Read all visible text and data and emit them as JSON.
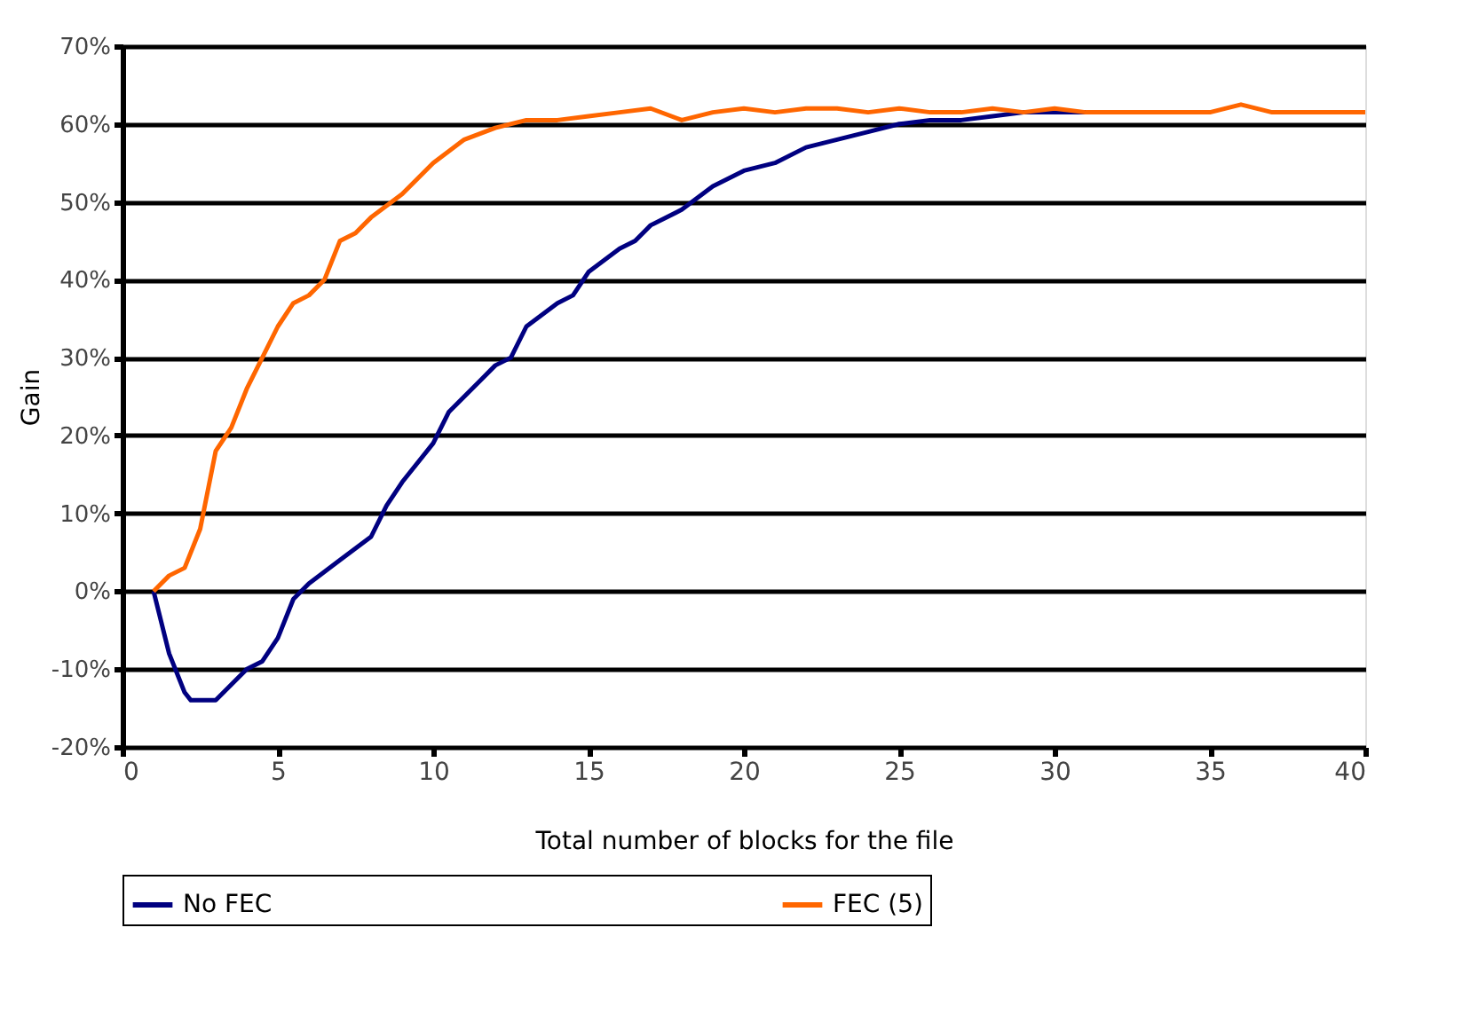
{
  "chart_data": {
    "type": "line",
    "xlabel": "Total number of blocks for the file",
    "ylabel": "Gain",
    "xlim": [
      0,
      40
    ],
    "xticks": [
      0,
      5,
      10,
      15,
      20,
      25,
      30,
      35,
      40
    ],
    "ylim": [
      -20,
      70
    ],
    "yticks": [
      {
        "value": -20,
        "label": "-20%"
      },
      {
        "value": -10,
        "label": "-10%"
      },
      {
        "value": 0,
        "label": "0%"
      },
      {
        "value": 10,
        "label": "10%"
      },
      {
        "value": 20,
        "label": "20%"
      },
      {
        "value": 30,
        "label": "30%"
      },
      {
        "value": 40,
        "label": "40%"
      },
      {
        "value": 50,
        "label": "50%"
      },
      {
        "value": 60,
        "label": "60%"
      },
      {
        "value": 70,
        "label": "70%"
      }
    ],
    "grid": "y",
    "legend": "bottom",
    "marker": "none",
    "line_style": "solid",
    "series": [
      {
        "name": "No FEC",
        "color": "#000080",
        "x": [
          1,
          1.5,
          2,
          2.2,
          3,
          3.5,
          4,
          4.5,
          5,
          5.5,
          6,
          7,
          8,
          8.5,
          9,
          10,
          10.5,
          11,
          11.5,
          12,
          12.5,
          13,
          14,
          14.5,
          15,
          16,
          16.5,
          17,
          18,
          19,
          20,
          21,
          22,
          23,
          24,
          25,
          26,
          27,
          28,
          29,
          30,
          31
        ],
        "values": [
          0,
          -8,
          -13,
          -14,
          -14,
          -12,
          -10,
          -9,
          -6,
          -1,
          1,
          4,
          7,
          11,
          14,
          19,
          23,
          25,
          27,
          29,
          30,
          34,
          37,
          38,
          41,
          44,
          45,
          47,
          49,
          52,
          54,
          55,
          57,
          58,
          59,
          60,
          60.5,
          60.5,
          61,
          61.5,
          61.5,
          61.5
        ]
      },
      {
        "name": "FEC (5)",
        "color": "#ff6600",
        "x": [
          1,
          1.5,
          2,
          2.5,
          3,
          3.5,
          4,
          4.5,
          5,
          5.5,
          6,
          6.5,
          7,
          7.5,
          8,
          9,
          10,
          11,
          12,
          13,
          14,
          15,
          16,
          17,
          18,
          19,
          20,
          21,
          22,
          23,
          24,
          25,
          26,
          27,
          28,
          29,
          30,
          31,
          35,
          36,
          37,
          40
        ],
        "values": [
          0,
          2,
          3,
          8,
          18,
          21,
          26,
          30,
          34,
          37,
          38,
          40,
          45,
          46,
          48,
          51,
          55,
          58,
          59.5,
          60.5,
          60.5,
          61,
          61.5,
          62,
          60.5,
          61.5,
          62,
          61.5,
          62,
          62,
          61.5,
          62,
          61.5,
          61.5,
          62,
          61.5,
          62,
          61.5,
          61.5,
          62.5,
          61.5,
          61.5
        ]
      }
    ]
  }
}
